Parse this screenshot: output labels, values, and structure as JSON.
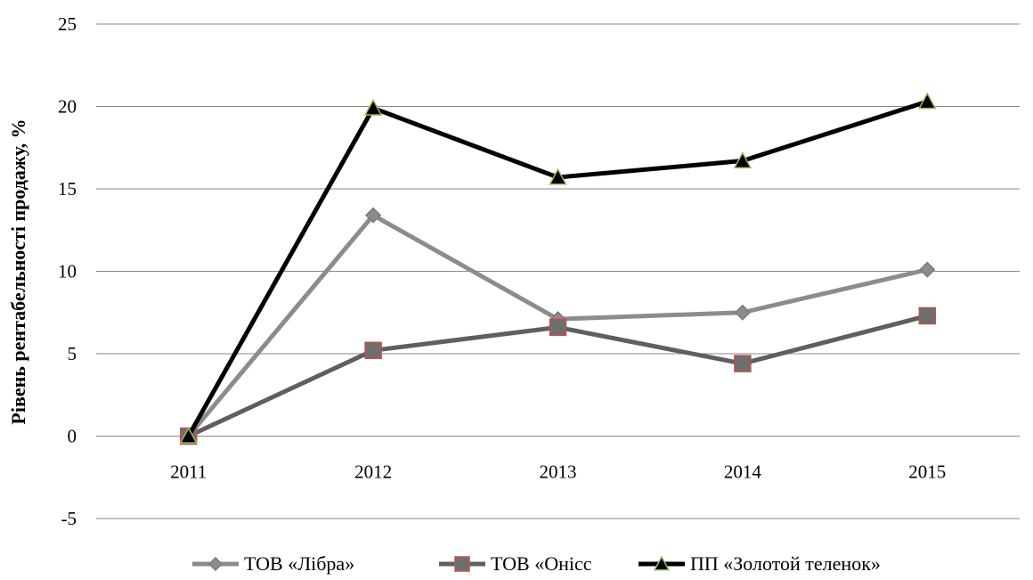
{
  "chart_data": {
    "type": "line",
    "categories": [
      "2011",
      "2012",
      "2013",
      "2014",
      "2015"
    ],
    "ylabel": "Рівень рентабельності продажу, %",
    "xlabel": "",
    "title": "",
    "ylim": [
      -5,
      25
    ],
    "yticks": [
      -5,
      0,
      5,
      10,
      15,
      20,
      25
    ],
    "grid": "horizontal",
    "legend_position": "bottom",
    "series": [
      {
        "name": "ТОВ «Лібра»",
        "values": [
          0,
          13.4,
          7.1,
          7.5,
          10.1
        ],
        "color": "#8c8c8c",
        "marker": "diamond",
        "marker_fill": "#8c8c8c",
        "marker_stroke": "#7a7a7a"
      },
      {
        "name": "ТОВ «Онісс",
        "values": [
          0,
          5.2,
          6.6,
          4.4,
          7.3
        ],
        "color": "#5f5f5f",
        "marker": "square",
        "marker_fill": "#6e6e6e",
        "marker_stroke": "#c0504d"
      },
      {
        "name": "ПП «Золотой теленок»",
        "values": [
          0,
          19.9,
          15.7,
          16.7,
          20.3
        ],
        "color": "#000000",
        "marker": "triangle",
        "marker_fill": "#000000",
        "marker_stroke": "#9bbb59"
      }
    ]
  }
}
